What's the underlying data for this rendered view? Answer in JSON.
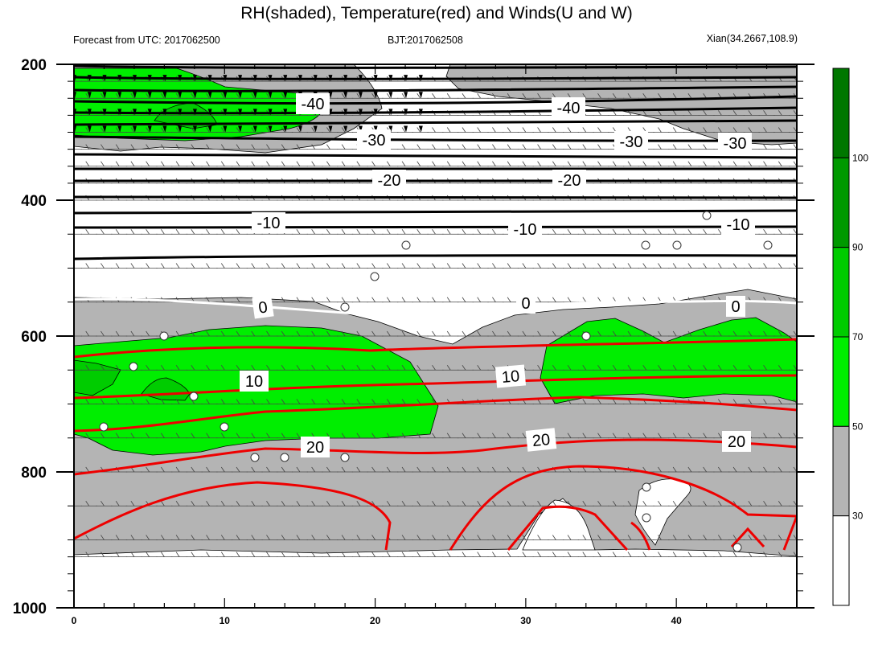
{
  "chart_data": {
    "type": "contour",
    "title": "RH(shaded), Temperature(red) and Winds(U and W)",
    "subtitle_left": "Forecast from UTC: 2017062500",
    "subtitle_center": "BJT:2017062508",
    "subtitle_right": "Xian(34.2667,108.9)",
    "x": {
      "ticks": [
        0,
        10,
        20,
        30,
        40
      ],
      "lim": [
        0,
        48
      ]
    },
    "y": {
      "ticks": [
        200,
        400,
        600,
        800,
        1000
      ],
      "lim": [
        200,
        1000
      ],
      "levels": [
        200,
        225,
        250,
        275,
        300,
        325,
        350,
        375,
        400,
        450,
        500,
        550,
        600,
        650,
        700,
        750,
        800,
        850,
        900,
        925,
        950,
        975,
        1000
      ]
    },
    "rh_colorbar": {
      "labels": [
        "30",
        "50",
        "70",
        "90",
        "100"
      ],
      "colors": [
        "#ffffff",
        "#b4b4b4",
        "#00ee00",
        "#00cc00",
        "#009900",
        "#007700"
      ]
    },
    "temperature_contours": {
      "black_labels": [
        "-40",
        "-40",
        "-30",
        "-30",
        "-30",
        "-20",
        "-20",
        "-10",
        "-10",
        "-10"
      ],
      "zero_labels": [
        "0",
        "0",
        "0"
      ],
      "red_labels": [
        "10",
        "10",
        "20",
        "20",
        "20"
      ]
    }
  }
}
